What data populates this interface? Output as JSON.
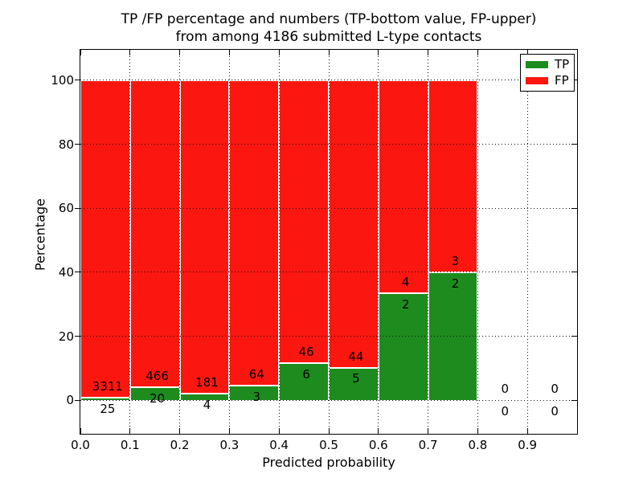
{
  "figure": {
    "title_line1": "TP /FP percentage and numbers (TP-bottom value, FP-upper)",
    "title_line2": "from among 4186 submitted L-type contacts",
    "xlabel": "Predicted probability",
    "ylabel": "Percentage"
  },
  "legend": {
    "items": [
      {
        "label": "TP",
        "color": "#1e8b1e"
      },
      {
        "label": "FP",
        "color": "#fb170f"
      }
    ]
  },
  "colors": {
    "tp": "#1e8b1e",
    "fp": "#fb170f",
    "grid": "#000000",
    "background": "#ffffff"
  },
  "chart_data": {
    "type": "bar",
    "stacked": true,
    "title": "TP /FP percentage and numbers (TP-bottom value, FP-upper) from among 4186 submitted L-type contacts",
    "xlabel": "Predicted probability",
    "ylabel": "Percentage",
    "xlim": [
      0.0,
      1.0
    ],
    "ylim": [
      -10.5,
      109.5
    ],
    "grid": true,
    "legend_position": "upper right",
    "x_tick_labels": [
      "0.0",
      "0.1",
      "0.2",
      "0.3",
      "0.4",
      "0.5",
      "0.6",
      "0.7",
      "0.8",
      "0.9"
    ],
    "y_tick_values": [
      0,
      20,
      40,
      60,
      80,
      100
    ],
    "total_contacts": 4186,
    "normalization": "each bin scaled to 100% (TP bottom segment, FP upper segment)",
    "series": [
      {
        "name": "TP",
        "color": "#1e8b1e",
        "counts": [
          25,
          20,
          4,
          3,
          6,
          5,
          2,
          2,
          0,
          0
        ]
      },
      {
        "name": "FP",
        "color": "#fb170f",
        "counts": [
          3311,
          466,
          181,
          64,
          46,
          44,
          4,
          3,
          0,
          0
        ]
      }
    ],
    "bins": [
      {
        "range": [
          0.0,
          0.1
        ],
        "tp": 25,
        "fp": 3311
      },
      {
        "range": [
          0.1,
          0.2
        ],
        "tp": 20,
        "fp": 466
      },
      {
        "range": [
          0.2,
          0.3
        ],
        "tp": 4,
        "fp": 181
      },
      {
        "range": [
          0.3,
          0.4
        ],
        "tp": 3,
        "fp": 64
      },
      {
        "range": [
          0.4,
          0.5
        ],
        "tp": 6,
        "fp": 46
      },
      {
        "range": [
          0.5,
          0.6
        ],
        "tp": 5,
        "fp": 44
      },
      {
        "range": [
          0.6,
          0.7
        ],
        "tp": 2,
        "fp": 4
      },
      {
        "range": [
          0.7,
          0.8
        ],
        "tp": 2,
        "fp": 3
      },
      {
        "range": [
          0.8,
          0.9
        ],
        "tp": 0,
        "fp": 0
      },
      {
        "range": [
          0.9,
          1.0
        ],
        "tp": 0,
        "fp": 0
      }
    ]
  }
}
